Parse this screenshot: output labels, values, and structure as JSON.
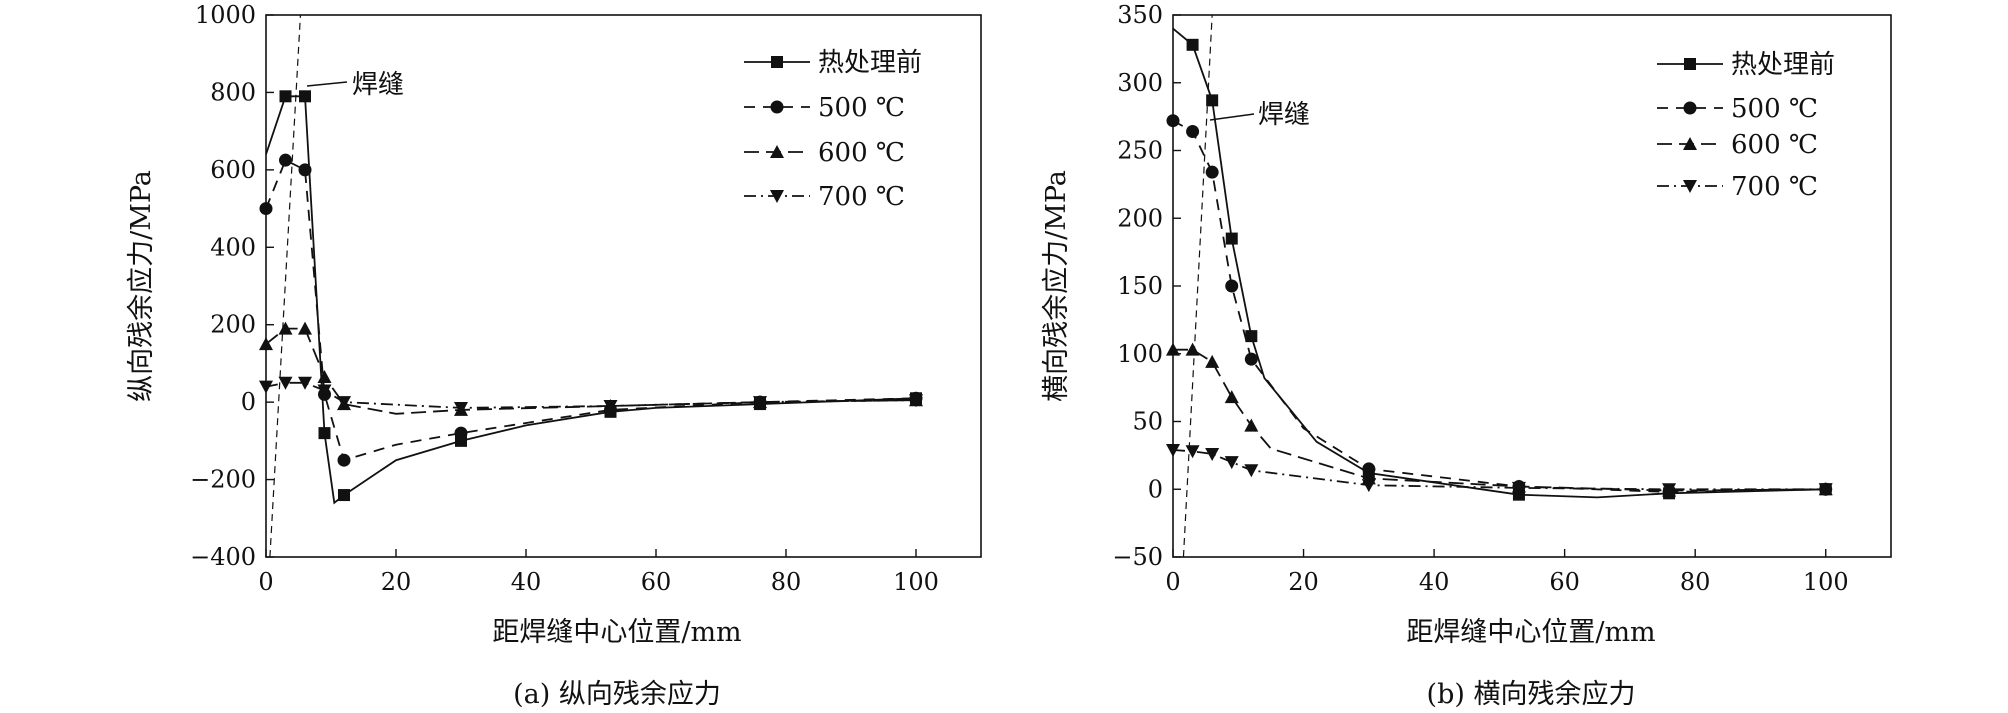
{
  "chart_data": [
    {
      "type": "line",
      "caption": "(a) 纵向残余应力",
      "xlabel": "距焊缝中心位置/mm",
      "ylabel": "纵向残余应力/MPa",
      "xlim": [
        0,
        110
      ],
      "ylim": [
        -400,
        1000
      ],
      "xticks": [
        0,
        20,
        40,
        60,
        80,
        100
      ],
      "yticks": [
        -400,
        -200,
        0,
        200,
        400,
        600,
        800,
        1000
      ],
      "ytick_labels": [
        "−400",
        "−200",
        "0",
        "200",
        "400",
        "600",
        "800",
        "1000"
      ],
      "grid": false,
      "legend_position": "top-right",
      "annotation": {
        "text": "焊缝",
        "at": [
          5,
          830
        ]
      },
      "weld_line": {
        "x": [
          0.6,
          5.3
        ],
        "y": [
          -400,
          1000
        ]
      },
      "series": [
        {
          "name": "热处理前",
          "marker": "square",
          "dash": "solid",
          "x": [
            0,
            3,
            6,
            9,
            10.5,
            12,
            20,
            30,
            40,
            53,
            60,
            76,
            100
          ],
          "y": [
            640,
            790,
            790,
            -80,
            -260,
            -240,
            -150,
            -100,
            -60,
            -25,
            -15,
            -5,
            10
          ],
          "marker_x": [
            3,
            6,
            9,
            12,
            30,
            53,
            76,
            100
          ],
          "marker_y": [
            790,
            790,
            -80,
            -240,
            -100,
            -25,
            -5,
            10
          ]
        },
        {
          "name": "500 ℃",
          "marker": "circle",
          "dash": "dashed",
          "x": [
            0,
            3,
            6,
            9,
            12,
            20,
            30,
            53,
            76,
            100
          ],
          "y": [
            500,
            625,
            600,
            20,
            -150,
            -110,
            -80,
            -20,
            0,
            10
          ],
          "marker_x": [
            0,
            3,
            6,
            9,
            12,
            30,
            53,
            76,
            100
          ],
          "marker_y": [
            500,
            625,
            600,
            20,
            -150,
            -80,
            -20,
            0,
            10
          ]
        },
        {
          "name": "600 ℃",
          "marker": "triangle-up",
          "dash": "longdash",
          "x": [
            0,
            3,
            6,
            9,
            12,
            20,
            30,
            53,
            76,
            100
          ],
          "y": [
            150,
            190,
            190,
            65,
            -5,
            -30,
            -20,
            -10,
            0,
            5
          ],
          "marker_x": [
            0,
            3,
            6,
            9,
            12,
            30,
            53,
            76,
            100
          ],
          "marker_y": [
            150,
            190,
            190,
            65,
            -5,
            -20,
            -10,
            0,
            5
          ]
        },
        {
          "name": "700 ℃",
          "marker": "triangle-down",
          "dash": "dashdot",
          "x": [
            0,
            3,
            6,
            9,
            12,
            30,
            53,
            76,
            100
          ],
          "y": [
            40,
            50,
            50,
            30,
            0,
            -15,
            -10,
            0,
            5
          ],
          "marker_x": [
            0,
            3,
            6,
            9,
            12,
            30,
            53,
            76,
            100
          ],
          "marker_y": [
            40,
            50,
            50,
            30,
            0,
            -15,
            -10,
            0,
            5
          ]
        }
      ]
    },
    {
      "type": "line",
      "caption": "(b) 横向残余应力",
      "xlabel": "距焊缝中心位置/mm",
      "ylabel": "横向残余应力/MPa",
      "xlim": [
        0,
        110
      ],
      "ylim": [
        -50,
        350
      ],
      "xticks": [
        0,
        20,
        40,
        60,
        80,
        100
      ],
      "yticks": [
        -50,
        0,
        50,
        100,
        150,
        200,
        250,
        300,
        350
      ],
      "ytick_labels": [
        "−50",
        "0",
        "50",
        "100",
        "150",
        "200",
        "250",
        "300",
        "350"
      ],
      "grid": false,
      "legend_position": "top-right",
      "annotation": {
        "text": "焊缝",
        "at": [
          4.2,
          295
        ]
      },
      "weld_line": {
        "x": [
          1.6,
          6.0
        ],
        "y": [
          -50,
          350
        ]
      },
      "series": [
        {
          "name": "热处理前",
          "marker": "square",
          "dash": "solid",
          "x": [
            0,
            3,
            6,
            9,
            12,
            14,
            22,
            30,
            53,
            65,
            76,
            100
          ],
          "y": [
            340,
            328,
            287,
            185,
            113,
            82,
            35,
            12,
            -4,
            -6,
            -3,
            0
          ],
          "marker_x": [
            3,
            6,
            9,
            12,
            30,
            53,
            76,
            100
          ],
          "marker_y": [
            328,
            287,
            185,
            113,
            12,
            -4,
            -3,
            0
          ]
        },
        {
          "name": "500 ℃",
          "marker": "circle",
          "dash": "dashed",
          "x": [
            0,
            3,
            6,
            9,
            12,
            20,
            30,
            53,
            76,
            100
          ],
          "y": [
            272,
            264,
            234,
            150,
            96,
            45,
            15,
            2,
            -2,
            0
          ],
          "marker_x": [
            0,
            3,
            6,
            9,
            12,
            30,
            53,
            76,
            100
          ],
          "marker_y": [
            272,
            264,
            234,
            150,
            96,
            15,
            2,
            -2,
            0
          ]
        },
        {
          "name": "600 ℃",
          "marker": "triangle-up",
          "dash": "longdash",
          "x": [
            0,
            3,
            6,
            9,
            12,
            15,
            30,
            53,
            76,
            100
          ],
          "y": [
            103,
            103,
            94,
            68,
            47,
            30,
            8,
            2,
            -1,
            0
          ],
          "marker_x": [
            0,
            3,
            6,
            9,
            12,
            30,
            53,
            76,
            100
          ],
          "marker_y": [
            103,
            103,
            94,
            68,
            47,
            8,
            2,
            -1,
            0
          ]
        },
        {
          "name": "700 ℃",
          "marker": "triangle-down",
          "dash": "dashdot",
          "x": [
            0,
            3,
            6,
            9,
            12,
            30,
            53,
            76,
            100
          ],
          "y": [
            29,
            28,
            26,
            20,
            14,
            3,
            1,
            0,
            0
          ],
          "marker_x": [
            0,
            3,
            6,
            9,
            12,
            30,
            53,
            76,
            100
          ],
          "marker_y": [
            29,
            28,
            26,
            20,
            14,
            3,
            1,
            0,
            0
          ]
        }
      ]
    }
  ]
}
